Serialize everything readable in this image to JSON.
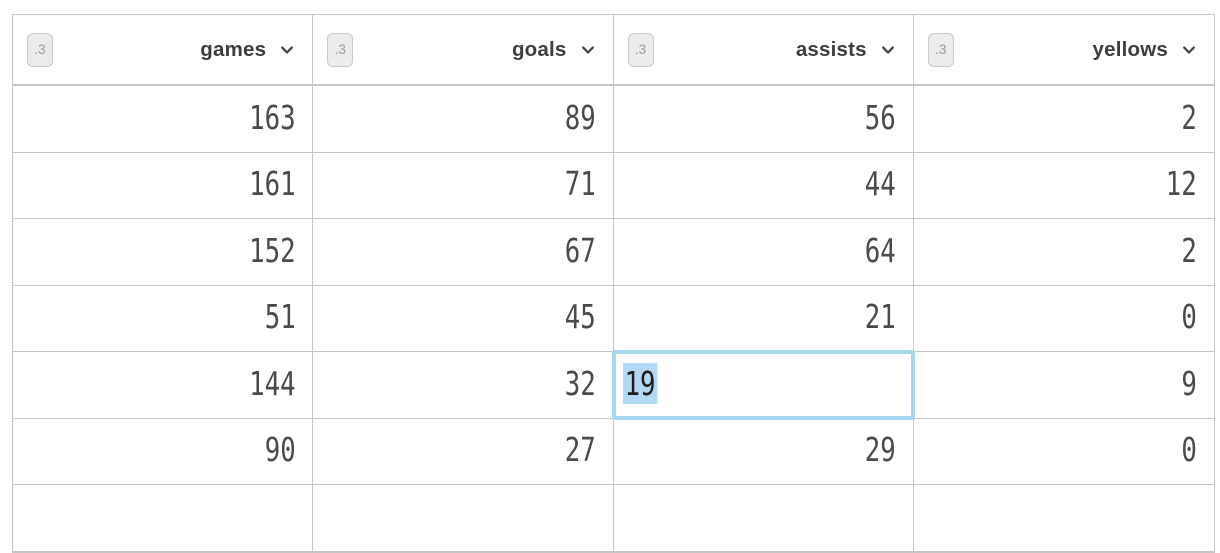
{
  "table": {
    "columns": [
      {
        "label": "games",
        "badge": ".3"
      },
      {
        "label": "goals",
        "badge": ".3"
      },
      {
        "label": "assists",
        "badge": ".3"
      },
      {
        "label": "yellows",
        "badge": ".3"
      }
    ],
    "rows": [
      [
        163,
        89,
        56,
        2
      ],
      [
        161,
        71,
        44,
        12
      ],
      [
        152,
        67,
        64,
        2
      ],
      [
        51,
        45,
        21,
        0
      ],
      [
        144,
        32,
        19,
        9
      ],
      [
        90,
        27,
        29,
        0
      ]
    ],
    "selection": {
      "row": 4,
      "col": 2,
      "value": "19"
    },
    "colors": {
      "grid_border": "#c6c6c6",
      "header_text": "#3d3d3d",
      "cell_text": "#4a4a4a",
      "badge_bg": "#ececec",
      "badge_border": "#c9c9c9",
      "badge_text": "#9b9b9b",
      "selection_border": "#a5d8f0",
      "selection_highlight": "#b3d8f3"
    }
  }
}
